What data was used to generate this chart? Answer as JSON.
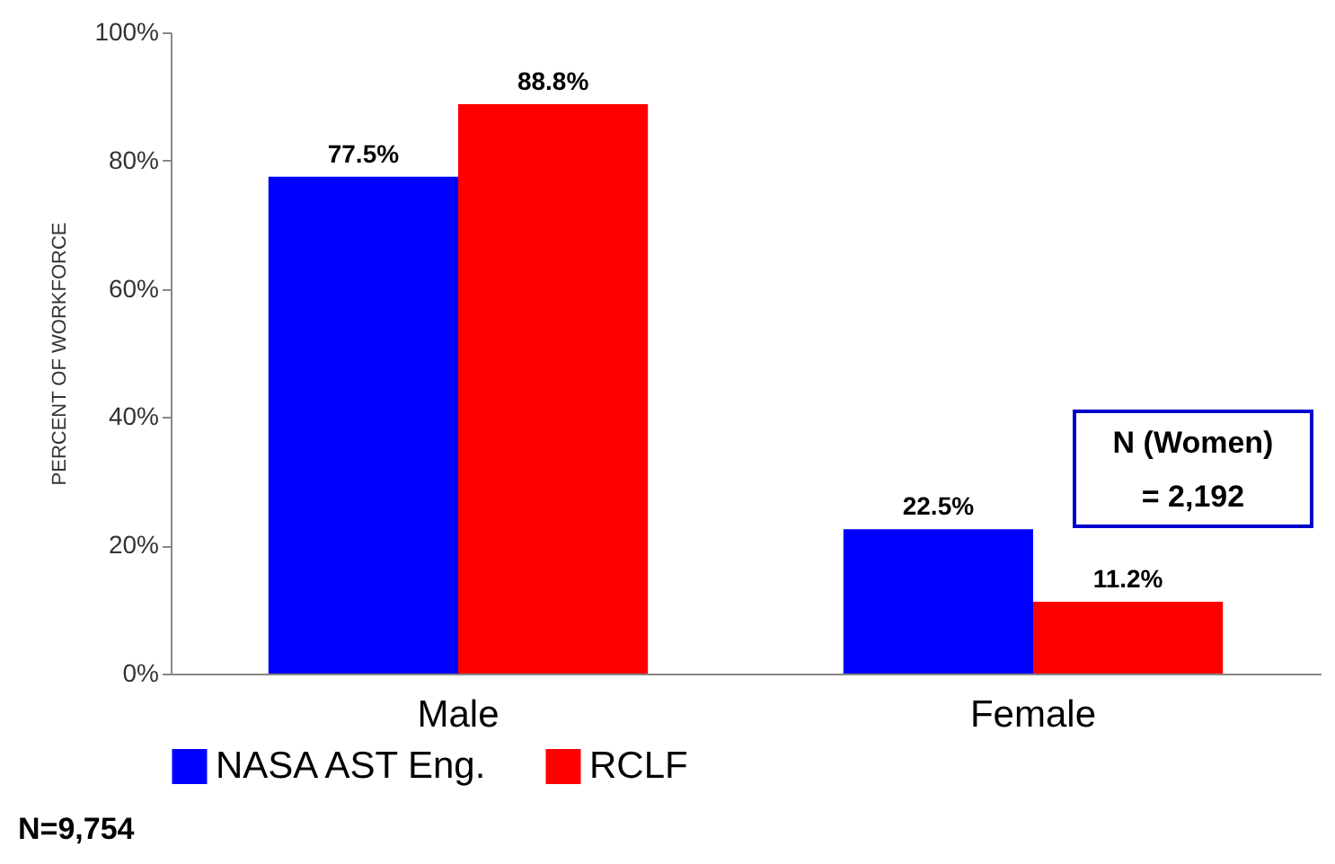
{
  "chart_data": {
    "type": "bar",
    "ylabel": "PERCENT OF WORKFORCE",
    "categories": [
      "Male",
      "Female"
    ],
    "series": [
      {
        "name": "NASA AST Eng.",
        "color": "#0000ff",
        "values": [
          77.5,
          22.5
        ],
        "value_labels": [
          "77.5%",
          "22.5%"
        ]
      },
      {
        "name": "RCLF",
        "color": "#ff0000",
        "values": [
          88.8,
          11.2
        ],
        "value_labels": [
          "88.8%",
          "11.2%"
        ]
      }
    ],
    "ylim": [
      0,
      100
    ],
    "yticks": [
      {
        "value": 0,
        "label": "0%"
      },
      {
        "value": 20,
        "label": "20%"
      },
      {
        "value": 40,
        "label": "40%"
      },
      {
        "value": 60,
        "label": "60%"
      },
      {
        "value": 80,
        "label": "80%"
      },
      {
        "value": 100,
        "label": "100%"
      }
    ],
    "grid": false,
    "legend": "bottom",
    "annotations": [
      "N (Women)\n= 2,192",
      "N=9,754"
    ]
  }
}
